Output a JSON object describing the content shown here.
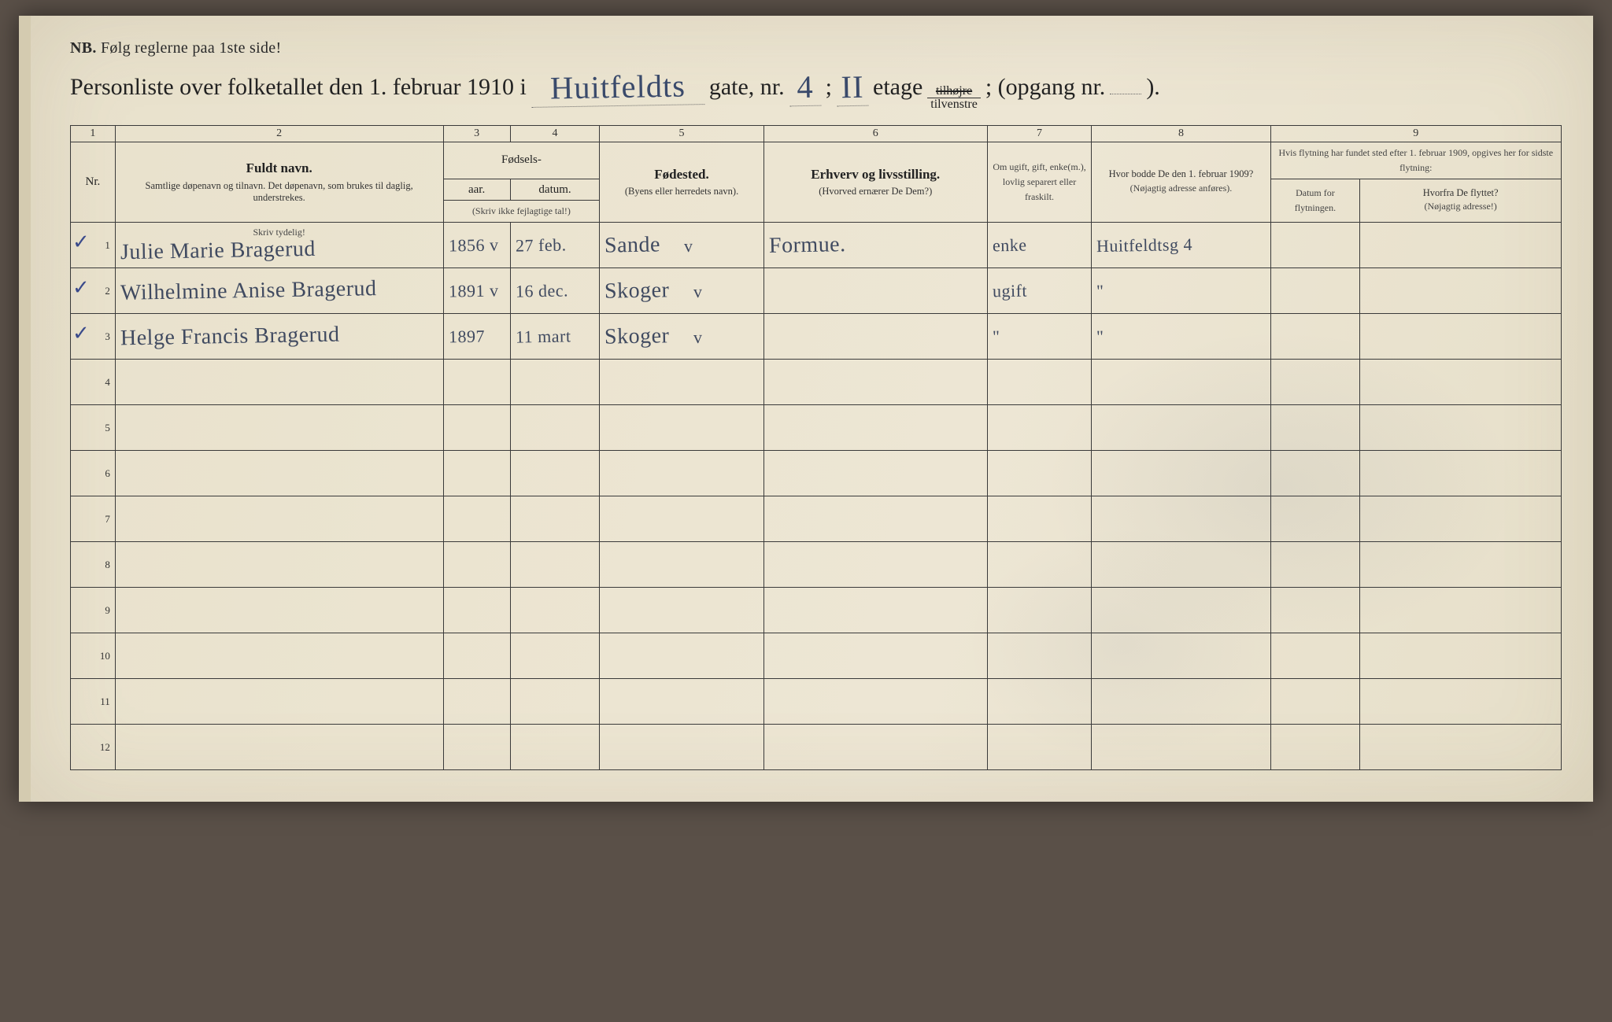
{
  "nb": {
    "label": "NB.",
    "text": "Følg reglerne paa 1ste side!"
  },
  "title": {
    "prefix": "Personliste over folketallet den 1. februar 1910 i",
    "street": "Huitfeldts",
    "gate_label": "gate, nr.",
    "house_nr": "4",
    "semicolon": ";",
    "floor": "II",
    "etage_label": "etage",
    "tilhojre": "tilhøjre",
    "tilvenstre": "tilvenstre",
    "opgang_label": "; (opgang nr.",
    "opgang_nr": "",
    "closing": ")."
  },
  "col_numbers": [
    "1",
    "2",
    "3",
    "4",
    "5",
    "6",
    "7",
    "8",
    "9"
  ],
  "headers": {
    "nr": "Nr.",
    "fuldt_navn": "Fuldt navn.",
    "fuldt_navn_sub": "Samtlige døpenavn og tilnavn. Det døpenavn, som brukes til daglig, understrekes.",
    "fodsels": "Fødsels-",
    "aar": "aar.",
    "datum": "datum.",
    "fodsels_sub": "(Skriv ikke fejlagtige tal!)",
    "fodested": "Fødested.",
    "fodested_sub": "(Byens eller herredets navn).",
    "erhverv": "Erhverv og livsstilling.",
    "erhverv_sub": "(Hvorved ernærer De Dem?)",
    "ugift": "Om ugift, gift, enke(m.), lovlig separert eller fraskilt.",
    "hvor_bodde": "Hvor bodde De den 1. februar 1909?",
    "hvor_bodde_sub": "(Nøjagtig adresse anføres).",
    "flytning": "Hvis flytning har fundet sted efter 1. februar 1909, opgives her for sidste flytning:",
    "datum_flyt": "Datum for flytningen.",
    "hvorfra": "Hvorfra De flyttet?",
    "hvorfra_sub": "(Nøjagtig adresse!)",
    "skriv_tydelig": "Skriv tydelig!"
  },
  "rows": [
    {
      "nr": "1",
      "check": "✓",
      "name": "Julie Marie Bragerud",
      "year": "1856",
      "ycheck": "v",
      "date": "27 feb.",
      "place": "Sande",
      "pcheck": "v",
      "occupation": "Formue.",
      "marital": "enke",
      "addr1909": "Huitfeldtsg 4"
    },
    {
      "nr": "2",
      "check": "✓",
      "name": "Wilhelmine Anise Bragerud",
      "year": "1891",
      "ycheck": "v",
      "date": "16 dec.",
      "place": "Skoger",
      "pcheck": "v",
      "occupation": "",
      "marital": "ugift",
      "addr1909": "\""
    },
    {
      "nr": "3",
      "check": "✓",
      "name": "Helge Francis Bragerud",
      "year": "1897",
      "ycheck": "",
      "date": "11 mart",
      "place": "Skoger",
      "pcheck": "v",
      "occupation": "",
      "marital": "\"",
      "addr1909": "\""
    },
    {
      "nr": "4"
    },
    {
      "nr": "5"
    },
    {
      "nr": "6"
    },
    {
      "nr": "7"
    },
    {
      "nr": "8"
    },
    {
      "nr": "9"
    },
    {
      "nr": "10"
    },
    {
      "nr": "11"
    },
    {
      "nr": "12"
    }
  ],
  "colors": {
    "paper": "#ebe4d0",
    "ink": "#2a2a2a",
    "handwriting": "#3a4a6b",
    "border": "#3a3a3a"
  }
}
